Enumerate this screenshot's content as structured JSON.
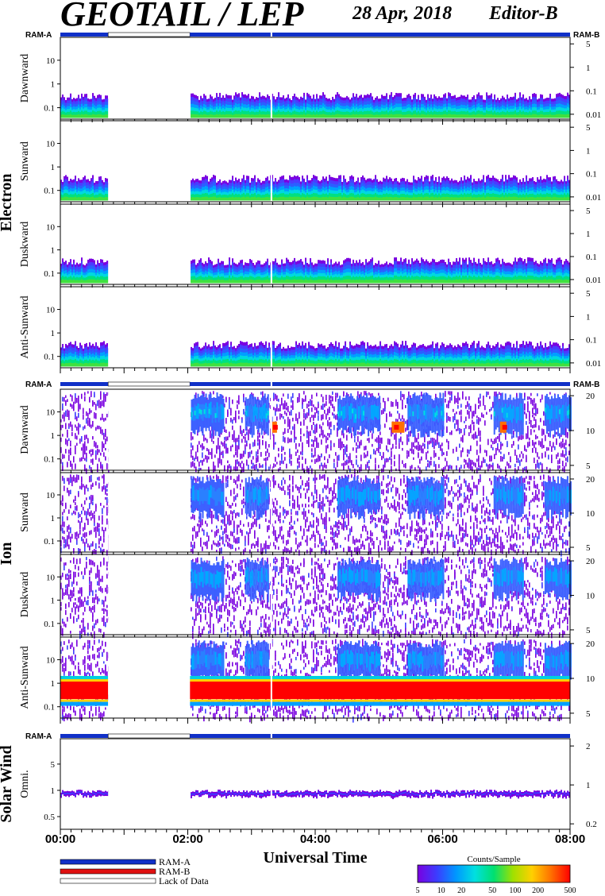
{
  "header": {
    "title": "GEOTAIL / LEP",
    "date": "28 Apr, 2018",
    "editor": "Editor-B"
  },
  "colors": {
    "ram_a": "#1030c8",
    "ram_b": "#e01010",
    "lack_of_data": "#ffffff",
    "colorbar": [
      "#7a00e0",
      "#3c3cff",
      "#0096ff",
      "#00e0e0",
      "#00e070",
      "#a0e000",
      "#ffd000",
      "#ff7000",
      "#ff0000"
    ]
  },
  "chart_data": [
    {
      "type": "heatmap",
      "group": "Electron",
      "ylabel": "Dawnward",
      "y_ticks_left": [
        "10",
        "1",
        "0.1"
      ],
      "y_ticks_right": [
        "5",
        "1",
        "0.1",
        "0.01"
      ],
      "x_range": [
        "00:00",
        "08:00"
      ],
      "data_gap": [
        "00:45",
        "02:02"
      ],
      "ram_status": {
        "left": "RAM-A",
        "right": "RAM-B"
      }
    },
    {
      "type": "heatmap",
      "group": "Electron",
      "ylabel": "Sunward",
      "y_ticks_left": [
        "10",
        "1",
        "0.1"
      ],
      "y_ticks_right": [
        "5",
        "1",
        "0.1",
        "0.01"
      ],
      "x_range": [
        "00:00",
        "08:00"
      ],
      "data_gap": [
        "00:45",
        "02:02"
      ]
    },
    {
      "type": "heatmap",
      "group": "Electron",
      "ylabel": "Duskward",
      "y_ticks_left": [
        "10",
        "1",
        "0.1"
      ],
      "y_ticks_right": [
        "5",
        "1",
        "0.1",
        "0.01"
      ],
      "x_range": [
        "00:00",
        "08:00"
      ],
      "data_gap": [
        "00:45",
        "02:02"
      ]
    },
    {
      "type": "heatmap",
      "group": "Electron",
      "ylabel": "Anti-Sunward",
      "y_ticks_left": [
        "10",
        "1",
        "0.1"
      ],
      "y_ticks_right": [
        "5",
        "1",
        "0.1",
        "0.01"
      ],
      "x_range": [
        "00:00",
        "08:00"
      ],
      "data_gap": [
        "00:45",
        "02:02"
      ]
    },
    {
      "type": "heatmap",
      "group": "Ion",
      "ylabel": "Dawnward",
      "y_ticks_left": [
        "10",
        "1",
        "0.1"
      ],
      "y_ticks_right": [
        "20",
        "10",
        "5"
      ],
      "x_range": [
        "00:00",
        "08:00"
      ],
      "data_gap": [
        "00:45",
        "02:02"
      ],
      "ram_status": {
        "left": "RAM-A",
        "right": "RAM-B"
      }
    },
    {
      "type": "heatmap",
      "group": "Ion",
      "ylabel": "Sunward",
      "y_ticks_left": [
        "10",
        "1",
        "0.1"
      ],
      "y_ticks_right": [
        "20",
        "10",
        "5"
      ],
      "x_range": [
        "00:00",
        "08:00"
      ],
      "data_gap": [
        "00:45",
        "02:02"
      ]
    },
    {
      "type": "heatmap",
      "group": "Ion",
      "ylabel": "Duskward",
      "y_ticks_left": [
        "10",
        "1",
        "0.1"
      ],
      "y_ticks_right": [
        "20",
        "10",
        "5"
      ],
      "x_range": [
        "00:00",
        "08:00"
      ],
      "data_gap": [
        "00:45",
        "02:02"
      ]
    },
    {
      "type": "heatmap",
      "group": "Ion",
      "ylabel": "Anti-Sunward",
      "y_ticks_left": [
        "10",
        "1",
        "0.1"
      ],
      "y_ticks_right": [
        "20",
        "10",
        "5"
      ],
      "x_range": [
        "00:00",
        "08:00"
      ],
      "data_gap": [
        "00:45",
        "02:02"
      ]
    },
    {
      "type": "heatmap",
      "group": "Solar Wind",
      "ylabel": "Omni.",
      "y_ticks_left": [
        "5",
        "1",
        "0.5"
      ],
      "y_ticks_right": [
        "2",
        "1",
        "0.2"
      ],
      "x_range": [
        "00:00",
        "08:00"
      ],
      "data_gap": [
        "00:45",
        "02:02"
      ],
      "ram_status": {
        "left": "RAM-A",
        "right": ""
      }
    }
  ],
  "axes": {
    "x_ticks": [
      "00:00",
      "02:00",
      "04:00",
      "06:00",
      "08:00"
    ],
    "xlabel": "Universal Time",
    "groups": [
      "Electron",
      "Ion",
      "Solar Wind"
    ]
  },
  "legend": {
    "items": [
      "RAM-A",
      "RAM-B",
      "Lack of Data"
    ],
    "colorbar_title": "Counts/Sample",
    "colorbar_ticks": [
      "5",
      "10",
      "20",
      "50",
      "100",
      "200",
      "500"
    ]
  }
}
